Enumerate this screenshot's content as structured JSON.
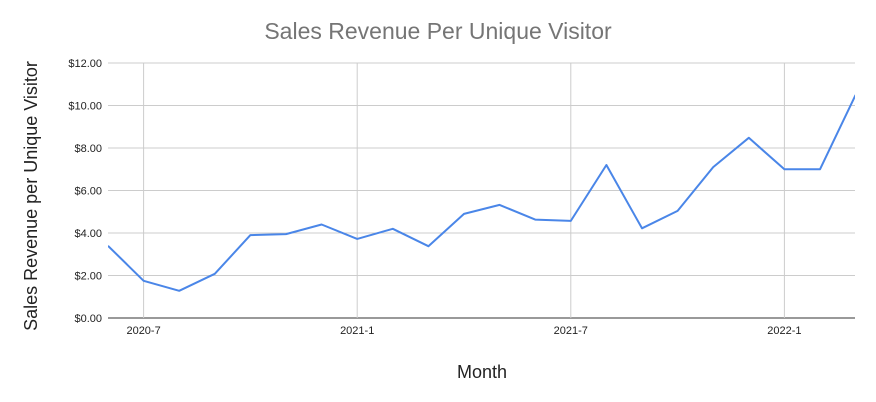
{
  "chart_data": {
    "type": "line",
    "title": "Sales Revenue Per Unique Visitor",
    "xlabel": "Month",
    "ylabel": "Sales Revenue per Unique Visitor",
    "x": [
      "2020-06",
      "2020-07",
      "2020-08",
      "2020-09",
      "2020-10",
      "2020-11",
      "2020-12",
      "2021-01",
      "2021-02",
      "2021-03",
      "2021-04",
      "2021-05",
      "2021-06",
      "2021-07",
      "2021-08",
      "2021-09",
      "2021-10",
      "2021-11",
      "2021-12",
      "2022-01",
      "2022-02",
      "2022-03"
    ],
    "x_ticks": [
      {
        "value": "2020-07",
        "label": "2020-7"
      },
      {
        "value": "2021-01",
        "label": "2021-1"
      },
      {
        "value": "2021-07",
        "label": "2021-7"
      },
      {
        "value": "2022-01",
        "label": "2022-1"
      }
    ],
    "y_ticks": [
      {
        "value": 0,
        "label": "$0.00"
      },
      {
        "value": 2,
        "label": "$2.00"
      },
      {
        "value": 4,
        "label": "$4.00"
      },
      {
        "value": 6,
        "label": "$6.00"
      },
      {
        "value": 8,
        "label": "$8.00"
      },
      {
        "value": 10,
        "label": "$10.00"
      },
      {
        "value": 12,
        "label": "$12.00"
      }
    ],
    "ylim": [
      0,
      12
    ],
    "grid": true,
    "legend": "none",
    "series": [
      {
        "color": "#4a86e8",
        "values": [
          3.4,
          1.75,
          1.28,
          2.08,
          3.9,
          3.95,
          4.4,
          3.72,
          4.2,
          3.38,
          4.9,
          5.32,
          4.63,
          4.57,
          7.2,
          4.22,
          5.04,
          7.1,
          8.48,
          7.0,
          7.0,
          10.5
        ]
      }
    ]
  }
}
